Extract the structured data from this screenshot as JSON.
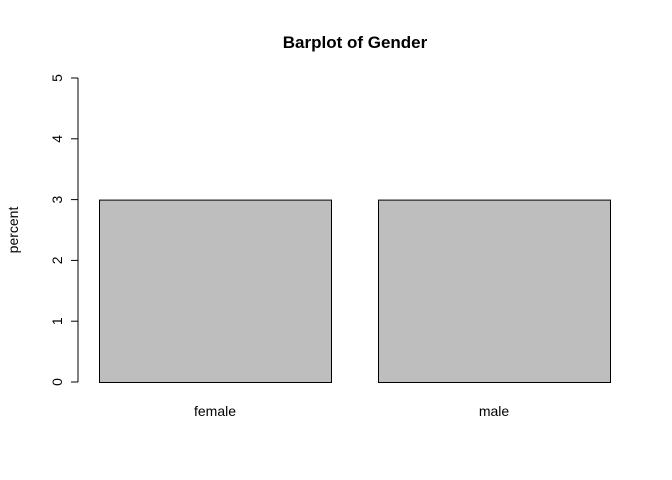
{
  "chart_data": {
    "type": "bar",
    "title": "Barplot of Gender",
    "xlabel": "",
    "ylabel": "percent",
    "categories": [
      "female",
      "male"
    ],
    "values": [
      3,
      3
    ],
    "ylim": [
      0,
      5
    ],
    "yticks": [
      "0",
      "1",
      "2",
      "3",
      "4",
      "5"
    ],
    "grid": false,
    "legend": "none",
    "colors": {
      "bar_fill": "#bebebe",
      "bar_stroke": "#000000",
      "axis": "#000000"
    }
  }
}
